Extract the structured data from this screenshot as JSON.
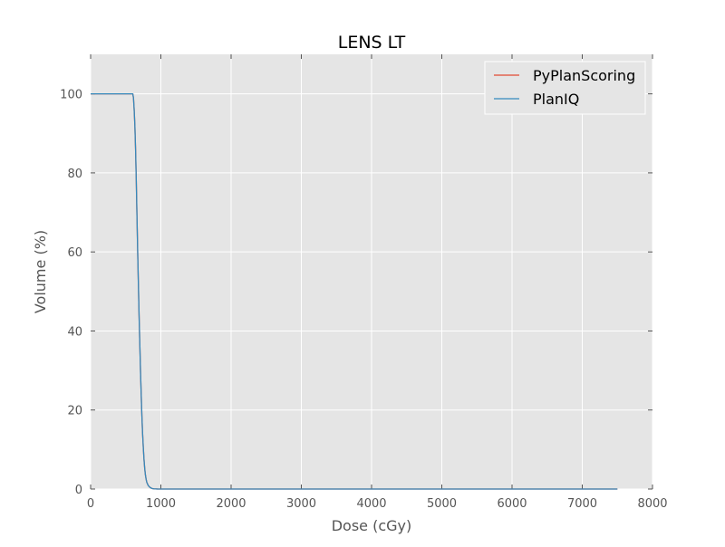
{
  "chart_data": {
    "type": "line",
    "title": "LENS LT",
    "xlabel": "Dose (cGy)",
    "ylabel": "Volume (%)",
    "xlim": [
      0,
      8000
    ],
    "ylim": [
      0,
      110
    ],
    "xticks": [
      0,
      1000,
      2000,
      3000,
      4000,
      5000,
      6000,
      7000,
      8000
    ],
    "yticks": [
      0,
      20,
      40,
      60,
      80,
      100
    ],
    "grid": true,
    "background": "#e5e5e5",
    "grid_color": "#ffffff",
    "legend": {
      "placement": "top-right",
      "entries": [
        "PyPlanScoring",
        "PlanIQ"
      ]
    },
    "series": [
      {
        "name": "PyPlanScoring",
        "color": "#e24a33",
        "x": [
          0,
          550,
          600,
          610,
          620,
          630,
          640,
          650,
          660,
          670,
          680,
          690,
          700,
          710,
          720,
          730,
          740,
          750,
          760,
          770,
          780,
          790,
          800,
          820,
          840,
          860,
          880,
          900,
          950,
          1000,
          7500
        ],
        "y": [
          100,
          100,
          100,
          99,
          96,
          92,
          86,
          78,
          69,
          60,
          52,
          44,
          37,
          30,
          24,
          18.5,
          14,
          10.5,
          7.5,
          5.2,
          3.6,
          2.5,
          1.7,
          0.9,
          0.5,
          0.25,
          0.12,
          0.05,
          0.01,
          0,
          0
        ]
      },
      {
        "name": "PlanIQ",
        "color": "#348abd",
        "x": [
          0,
          550,
          600,
          610,
          620,
          630,
          640,
          650,
          660,
          670,
          680,
          690,
          700,
          710,
          720,
          730,
          740,
          750,
          760,
          770,
          780,
          790,
          800,
          820,
          840,
          860,
          880,
          900,
          950,
          1000,
          7500
        ],
        "y": [
          100,
          100,
          100,
          99,
          96,
          92,
          86,
          78,
          69,
          60,
          52,
          44,
          37,
          30,
          24,
          18.5,
          14,
          10.5,
          7.5,
          5.2,
          3.6,
          2.5,
          1.7,
          0.9,
          0.5,
          0.25,
          0.12,
          0.05,
          0.01,
          0,
          0
        ]
      }
    ]
  }
}
